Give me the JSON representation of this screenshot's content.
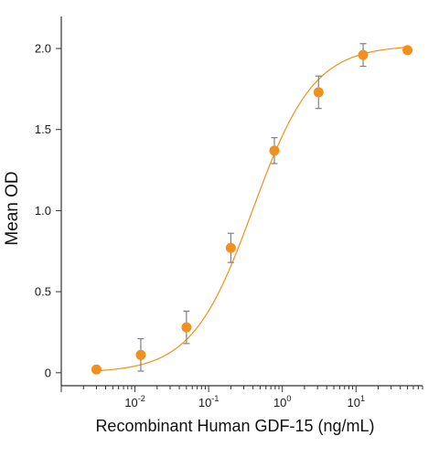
{
  "chart_data": {
    "type": "scatter",
    "title": "",
    "xlabel": "Recombinant Human GDF-15 (ng/mL)",
    "ylabel": "Mean OD",
    "x_scale": "log",
    "xlim": [
      0.001,
      80
    ],
    "ylim": [
      -0.08,
      2.13
    ],
    "x_ticks": [
      {
        "value": 0.01,
        "base": "10",
        "exp": "-2"
      },
      {
        "value": 0.1,
        "base": "10",
        "exp": "-1"
      },
      {
        "value": 1,
        "base": "10",
        "exp": "0"
      },
      {
        "value": 10,
        "base": "10",
        "exp": "1"
      }
    ],
    "y_ticks": [
      {
        "value": 0,
        "label": "0"
      },
      {
        "value": 0.5,
        "label": "0.5"
      },
      {
        "value": 1.0,
        "label": "1.0"
      },
      {
        "value": 1.5,
        "label": "1.5"
      },
      {
        "value": 2.0,
        "label": "2.0"
      }
    ],
    "grid": false,
    "legend": "none",
    "series": [
      {
        "points": [
          {
            "x": 0.003,
            "y": 0.02,
            "err": 0
          },
          {
            "x": 0.012,
            "y": 0.11,
            "err": 0.1
          },
          {
            "x": 0.05,
            "y": 0.28,
            "err": 0.1
          },
          {
            "x": 0.2,
            "y": 0.77,
            "err": 0.09
          },
          {
            "x": 0.78,
            "y": 1.37,
            "err": 0.08
          },
          {
            "x": 3.1,
            "y": 1.73,
            "err": 0.1
          },
          {
            "x": 12.5,
            "y": 1.96,
            "err": 0.07
          },
          {
            "x": 50,
            "y": 1.99,
            "err": 0
          }
        ],
        "fit": {
          "model": "4PL",
          "bottom": 0.0,
          "top": 2.02,
          "ec50": 0.4,
          "hill": 1.05
        },
        "point_color": "#F2901E",
        "curve_color": "#F2901E",
        "errorbar_color": "#808080"
      }
    ]
  }
}
